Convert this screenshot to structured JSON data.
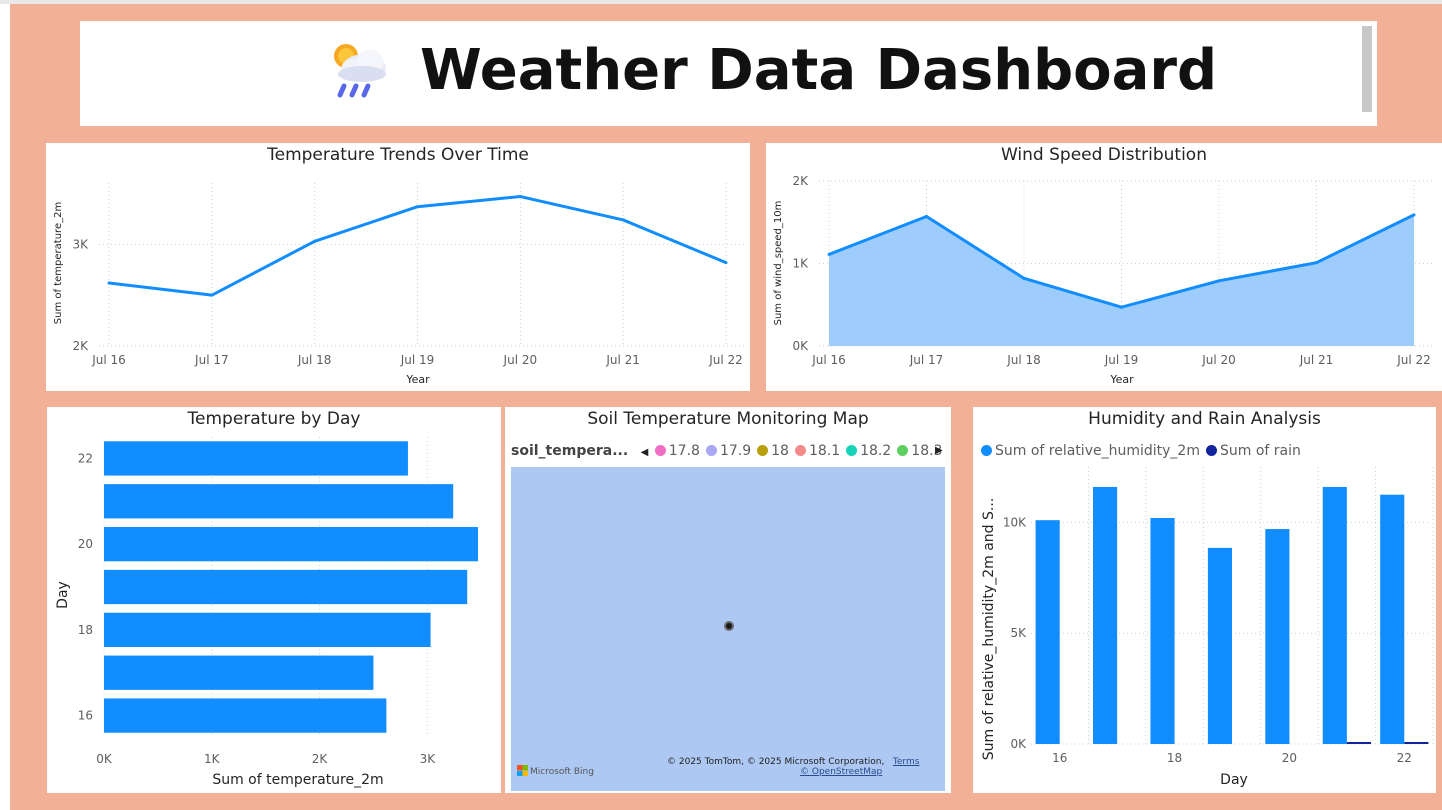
{
  "header": {
    "title": "Weather Data Dashboard",
    "icon": "cloud-sun-rain-icon"
  },
  "colors": {
    "background": "#f2b196",
    "primary": "#118dff",
    "area_fill": "#9fcdfb",
    "secondary": "#12239e"
  },
  "temp_trend": {
    "title": "Temperature Trends Over Time",
    "chart_data": {
      "type": "line",
      "title": "Temperature Trends Over Time",
      "xlabel": "Year",
      "ylabel": "Sum of temperature_2m",
      "categories": [
        "Jul 16",
        "Jul 17",
        "Jul 18",
        "Jul 19",
        "Jul 20",
        "Jul 21",
        "Jul 22"
      ],
      "values": [
        2620,
        2500,
        3030,
        3370,
        3470,
        3240,
        2820
      ],
      "ylim": [
        2000,
        3800
      ],
      "yticks": [
        {
          "v": 2000,
          "label": "2K"
        },
        {
          "v": 3000,
          "label": "3K"
        }
      ]
    }
  },
  "wind": {
    "title": "Wind Speed Distribution",
    "chart_data": {
      "type": "area",
      "title": "Wind Speed Distribution",
      "xlabel": "Year",
      "ylabel": "Sum of wind_speed_10m",
      "categories": [
        "Jul 16",
        "Jul 17",
        "Jul 18",
        "Jul 19",
        "Jul 20",
        "Jul 21",
        "Jul 22"
      ],
      "values": [
        1110,
        1570,
        820,
        470,
        790,
        1010,
        1590
      ],
      "ylim": [
        0,
        2000
      ],
      "yticks": [
        {
          "v": 0,
          "label": "0K"
        },
        {
          "v": 1000,
          "label": "1K"
        },
        {
          "v": 2000,
          "label": "2K"
        }
      ]
    }
  },
  "temp_day": {
    "title": "Temperature by Day",
    "chart_data": {
      "type": "bar",
      "orientation": "horizontal",
      "title": "Temperature by Day",
      "xlabel": "Sum of temperature_2m",
      "ylabel": "Day",
      "categories": [
        "22",
        "21",
        "20",
        "19",
        "18",
        "17",
        "16"
      ],
      "category_labels": [
        "22",
        "",
        "20",
        "",
        "18",
        "",
        "16"
      ],
      "values": [
        2820,
        3240,
        3470,
        3370,
        3030,
        2500,
        2620
      ],
      "xlim": [
        0,
        3600
      ],
      "xticks": [
        {
          "v": 0,
          "label": "0K"
        },
        {
          "v": 1000,
          "label": "1K"
        },
        {
          "v": 2000,
          "label": "2K"
        },
        {
          "v": 3000,
          "label": "3K"
        }
      ]
    }
  },
  "soil_map": {
    "title": "Soil Temperature Monitoring Map",
    "legend_field": "soil_tempera...",
    "legend": [
      {
        "label": "17.8",
        "color": "#f06ec4"
      },
      {
        "label": "17.9",
        "color": "#a9a8f5"
      },
      {
        "label": "18",
        "color": "#b8a00c"
      },
      {
        "label": "18.1",
        "color": "#f58a8a"
      },
      {
        "label": "18.2",
        "color": "#16d4b8"
      },
      {
        "label": "18.3",
        "color": "#5ccf5e"
      }
    ],
    "attribution": "© 2025 TomTom, © 2025 Microsoft Corporation,",
    "terms": "Terms",
    "osm": "© OpenStreetMap",
    "bing": "Microsoft Bing"
  },
  "humidity": {
    "title": "Humidity and Rain Analysis",
    "chart_data": {
      "type": "bar",
      "title": "Humidity and Rain Analysis",
      "xlabel": "Day",
      "ylabel": "Sum of relative_humidity_2m and S...",
      "categories": [
        "16",
        "17",
        "18",
        "19",
        "20",
        "21",
        "22"
      ],
      "category_labels": [
        "16",
        "",
        "18",
        "",
        "20",
        "",
        "22"
      ],
      "series": [
        {
          "name": "Sum of relative_humidity_2m",
          "color": "#118dff",
          "values": [
            10100,
            11600,
            10200,
            8850,
            9700,
            11600,
            11250
          ]
        },
        {
          "name": "Sum of rain",
          "color": "#12239e",
          "values": [
            0,
            0,
            0,
            0,
            0,
            60,
            60
          ]
        }
      ],
      "ylim": [
        0,
        12500
      ],
      "yticks": [
        {
          "v": 0,
          "label": "0K"
        },
        {
          "v": 5000,
          "label": "5K"
        },
        {
          "v": 10000,
          "label": "10K"
        }
      ]
    }
  }
}
